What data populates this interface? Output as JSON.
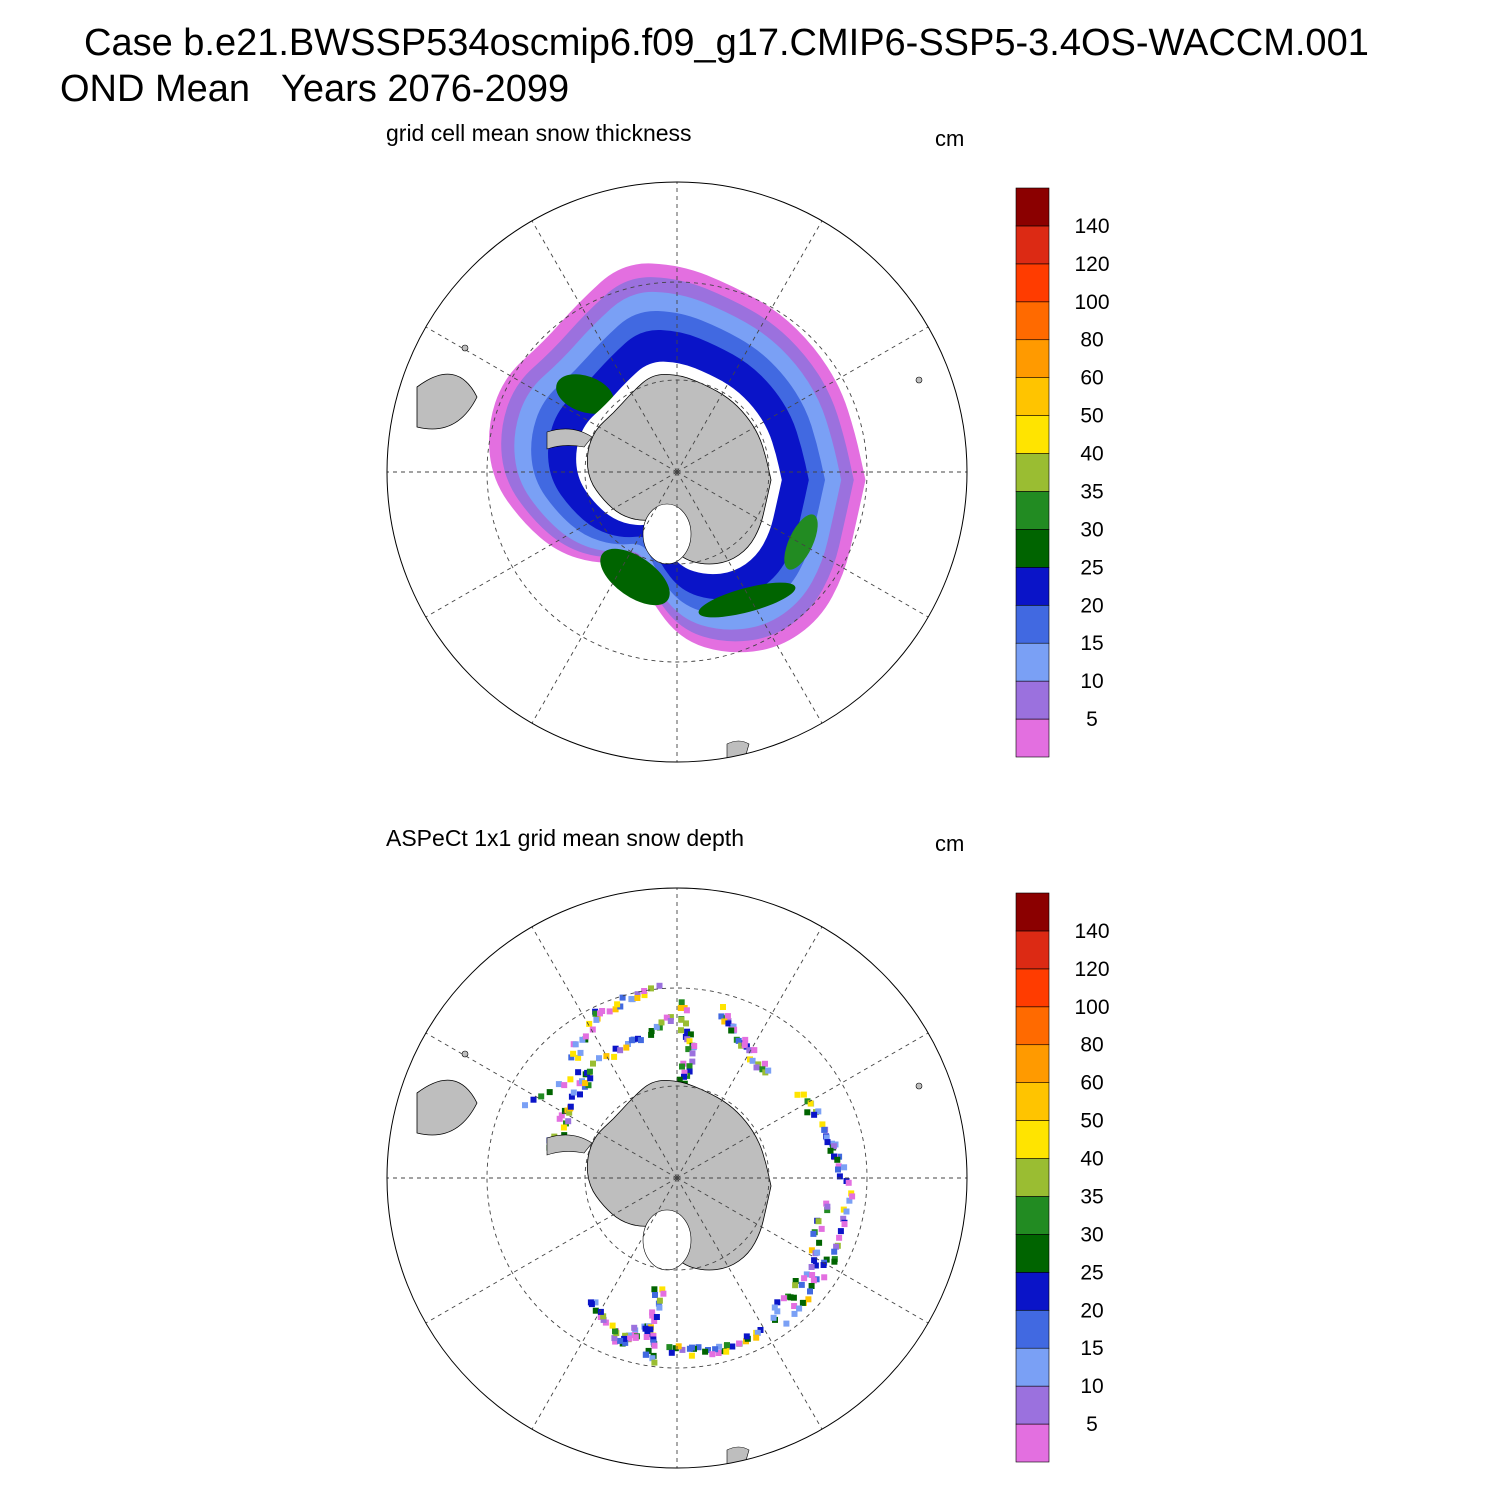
{
  "title": {
    "line1": "Case b.e21.BWSSP534oscmip6.f09_g17.CMIP6-SSP5-3.4OS-WACCM.001",
    "line2": "OND Mean   Years 2076-2099"
  },
  "panels": [
    {
      "title": "grid cell mean snow thickness",
      "units": "cm"
    },
    {
      "title": "ASPeCt 1x1 grid mean snow depth",
      "units": "cm"
    }
  ],
  "colorbar": {
    "colors": [
      "#e36fe0",
      "#9b71de",
      "#7aa0f5",
      "#4169e1",
      "#0a14c8",
      "#006400",
      "#228b22",
      "#9abd32",
      "#ffe400",
      "#ffc400",
      "#ff9a00",
      "#ff6a00",
      "#ff3c00",
      "#dc2a14",
      "#8b0000"
    ],
    "levels": [
      "5",
      "10",
      "15",
      "20",
      "25",
      "30",
      "35",
      "40",
      "50",
      "60",
      "80",
      "100",
      "120",
      "140"
    ]
  },
  "map": {
    "projection": "south-polar-stereographic",
    "land_color": "#bebebe",
    "graticule_meridians_deg": [
      0,
      30,
      60,
      90,
      120,
      150,
      180,
      210,
      240,
      270,
      300,
      330
    ],
    "graticule_parallels_deg": [
      -60
    ]
  }
}
